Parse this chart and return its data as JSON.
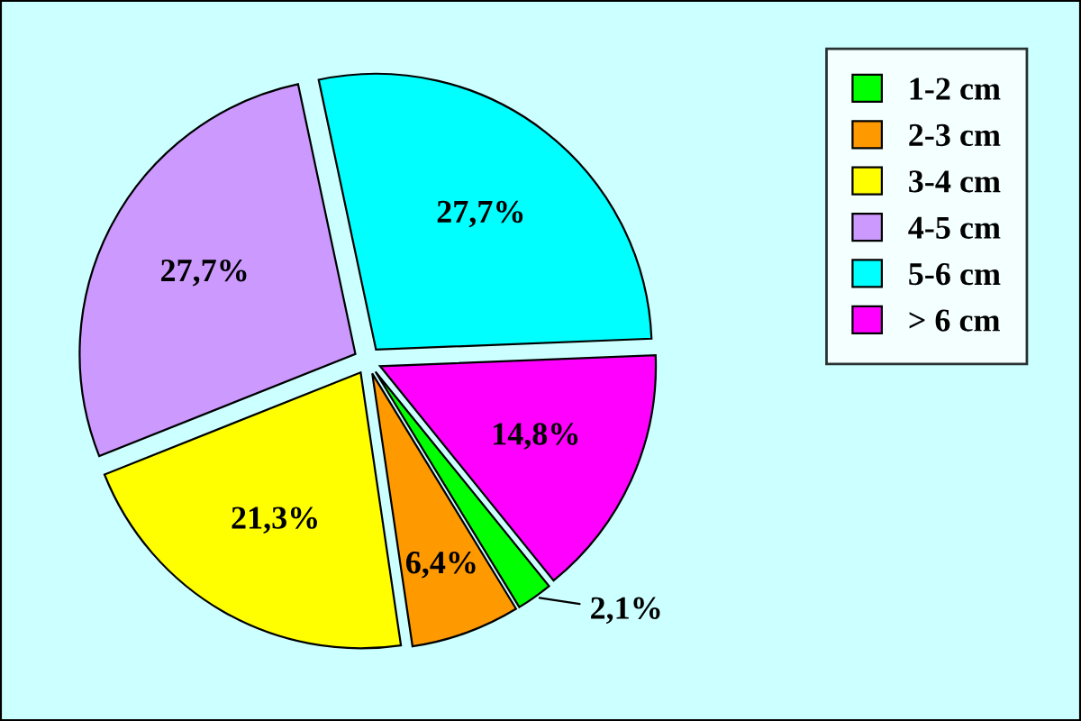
{
  "chart_data": {
    "type": "pie",
    "categories": [
      "1-2 cm",
      "2-3 cm",
      "3-4 cm",
      "4-5 cm",
      "5-6 cm",
      "> 6 cm"
    ],
    "values": [
      2.1,
      6.4,
      21.3,
      27.7,
      27.7,
      14.8
    ],
    "value_labels": [
      "2,1%",
      "6,4%",
      "21,3%",
      "27,7%",
      "27,7%",
      "14,8%"
    ],
    "colors": [
      "#00ff00",
      "#ff9900",
      "#ffff00",
      "#cc99ff",
      "#00ffff",
      "#ff00ff"
    ],
    "legend": "top right"
  }
}
